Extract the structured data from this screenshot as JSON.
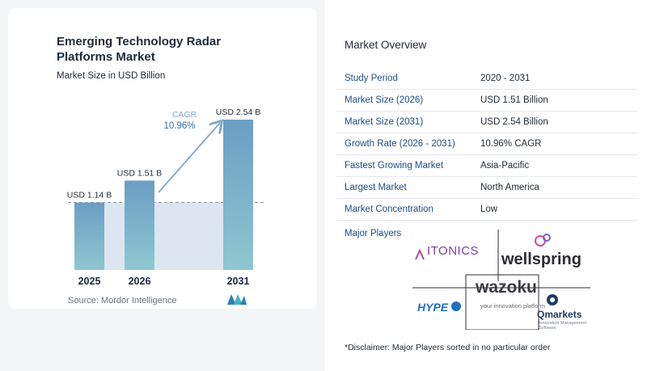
{
  "chart_data": {
    "type": "bar",
    "title": "Emerging Technology Radar Platforms Market",
    "subtitle": "Market Size in USD Billion",
    "categories": [
      "2025",
      "2026",
      "2031"
    ],
    "values": [
      1.14,
      1.51,
      2.54
    ],
    "value_labels": [
      "USD 1.14 B",
      "USD 1.51 B",
      "USD 2.54 B"
    ],
    "ylim": [
      0,
      2.54
    ],
    "annotation": {
      "label": "CAGR",
      "value": "10.96%"
    },
    "grid": false,
    "colors": {
      "bar_top": "#6b9ec3",
      "bar_bottom": "#8ec7d0",
      "band": "#dde6f0",
      "arrow": "#7fa8cc",
      "dash": "#8a96a3"
    }
  },
  "source": "Source: Mordor Intelligence",
  "overview": {
    "title": "Market Overview",
    "rows": [
      {
        "label": "Study Period",
        "value": "2020 - 2031"
      },
      {
        "label": "Market Size (2026)",
        "value": "USD 1.51 Billion"
      },
      {
        "label": "Market Size (2031)",
        "value": "USD 2.54 Billion"
      },
      {
        "label": "Growth Rate (2026 - 2031)",
        "value": "10.96% CAGR"
      },
      {
        "label": "Fastest Growing Market",
        "value": "Asia-Pacific"
      },
      {
        "label": "Largest Market",
        "value": "North America"
      },
      {
        "label": "Market Concentration",
        "value": "Low"
      }
    ],
    "players_label": "Major Players",
    "players": {
      "itonics": "ITONICS",
      "wellspring": "wellspring",
      "wazoku": "wazoku",
      "wazoku_tagline": "your innovation platform",
      "hype": "HYPE",
      "qmarkets": "Qmarkets",
      "qmarkets_tagline": "Innovation Management Software"
    },
    "disclaimer": "*Disclaimer: Major Players sorted in no particular order"
  }
}
